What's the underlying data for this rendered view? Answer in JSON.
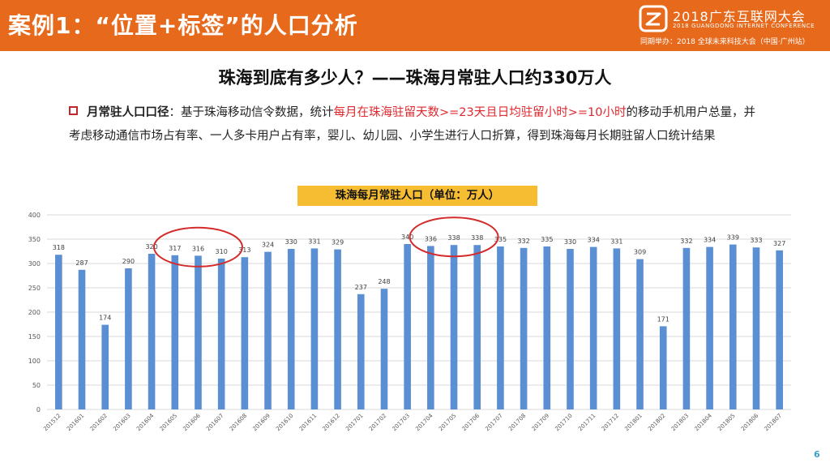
{
  "header": {
    "title": "案例1：“位置+标签”的人口分析",
    "conference_name": "2018广东互联网大会",
    "conference_en": "2018 GUANGDONG INTERNET CONFERENCE",
    "co_event": "同期举办：2018 全球未来科技大会（中国·广州站）",
    "bar_color": "#e76a1c"
  },
  "subtitle": "珠海到底有多少人？——珠海月常驻人口约330万人",
  "description": {
    "label": "月常驻人口口径",
    "text_before": "：基于珠海移动信令数据，统计",
    "highlight": "每月在珠海驻留天数>=23天且日均驻留小时>=10小时",
    "text_after": "的移动手机用户总量，并考虑移动通信市场占有率、一人多卡用户占有率，婴儿、幼儿园、小学生进行人口折算，得到珠海每月长期驻留人口统计结果",
    "highlight_color": "#e0282e"
  },
  "chart_data": {
    "type": "bar",
    "title": "珠海每月常驻人口（单位：万人）",
    "categories": [
      "201512",
      "201601",
      "201602",
      "201603",
      "201604",
      "201605",
      "201606",
      "201607",
      "201608",
      "201609",
      "201610",
      "201611",
      "201612",
      "201701",
      "201702",
      "201703",
      "201704",
      "201705",
      "201706",
      "201707",
      "201708",
      "201709",
      "201710",
      "201711",
      "201712",
      "201801",
      "201802",
      "201803",
      "201804",
      "201805",
      "201806",
      "201807"
    ],
    "values": [
      318,
      287,
      174,
      290,
      320,
      317,
      316,
      310,
      313,
      324,
      330,
      331,
      329,
      237,
      248,
      340,
      336,
      338,
      338,
      335,
      332,
      335,
      330,
      334,
      331,
      309,
      171,
      332,
      334,
      339,
      333,
      327
    ],
    "ylim": [
      0,
      400
    ],
    "yticks": [
      0,
      50,
      100,
      150,
      200,
      250,
      300,
      350,
      400
    ],
    "grid": true,
    "bar_color": "#5b8fd4",
    "highlight_circles": [
      {
        "from": "201605",
        "to": "201607"
      },
      {
        "from": "201704",
        "to": "201706"
      }
    ],
    "circle_color": "#d42a2a"
  },
  "page_number": "6"
}
